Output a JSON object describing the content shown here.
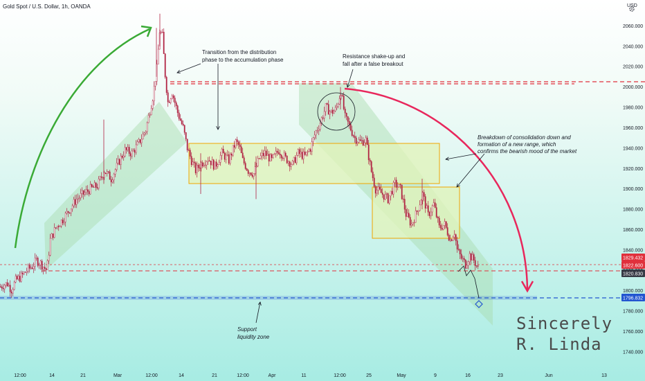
{
  "header": {
    "title": "Gold Spot / U.S. Dollar, 1h, OANDA",
    "currency": "USD"
  },
  "signature": {
    "line1": "Sincerely",
    "line2": "R. Linda"
  },
  "colors": {
    "bg_top": "#ffffff",
    "bg_bottom": "#a7ece3",
    "candle": "#b02040",
    "channel_fill": "#a9dcae",
    "range_border": "#f0a500",
    "range_fill": "#e2f3b8",
    "resistance": "#e0303c",
    "support": "#2255d0",
    "green_arrow": "#3aaa35",
    "red_arrow": "#e8275c"
  },
  "annotations": {
    "transition": [
      "Transition from the distribution",
      "phase to the accumulation phase"
    ],
    "resistance": [
      "Resistance shake-up and",
      "fall after a false breakout"
    ],
    "breakdown": [
      "Breakdown of consolidation down and",
      "formation of a new range, which",
      "confirms the bearish mood of the market"
    ],
    "support": [
      "Support",
      "liquidity zone"
    ]
  },
  "chart_data": {
    "type": "candlestick",
    "symbol": "Gold Spot / U.S. Dollar",
    "interval": "1h",
    "source": "OANDA",
    "ylim": [
      1725,
      2080
    ],
    "y_ticks": [
      1740,
      1760,
      1780,
      1800,
      1820,
      1840,
      1860,
      1880,
      1900,
      1920,
      1940,
      1960,
      1980,
      2000,
      2020,
      2040,
      2060
    ],
    "y_tick_labels": [
      "1740.000",
      "1760.000",
      "1780.000",
      "1800.000",
      "1820.000",
      "1840.000",
      "1860.000",
      "1880.000",
      "1900.000",
      "1920.000",
      "1940.000",
      "1960.000",
      "1980.000",
      "2000.000",
      "2020.000",
      "2040.000",
      "2060.000"
    ],
    "x_ticks": [
      "12:00",
      "14",
      "21",
      "Mar",
      "12:00",
      "14",
      "21",
      "12:00",
      "Apr",
      "11",
      "12:00",
      "25",
      "May",
      "9",
      "16",
      "23",
      "Jun",
      "13"
    ],
    "price_labels": [
      {
        "value": 1829.432,
        "label": "1829.432",
        "color": "#e0303c"
      },
      {
        "value": 1822.6,
        "label": "1822.600",
        "color": "#e0303c"
      },
      {
        "value": 1820.83,
        "label": "1820.830",
        "color": "#363a45"
      },
      {
        "value": 1796.832,
        "label": "1796.832",
        "color": "#2255d0"
      }
    ],
    "levels": [
      {
        "name": "resistance",
        "value": 2008
      },
      {
        "name": "support",
        "value": 1797
      },
      {
        "name": "local-low",
        "value": 1821
      }
    ],
    "ranges": [
      {
        "name": "accumulation-range",
        "start": "late Mar",
        "end": "mid May",
        "low": 1910,
        "high": 1950
      },
      {
        "name": "new-range",
        "start": "late Apr",
        "end": "mid May",
        "low": 1856,
        "high": 1906
      }
    ],
    "price_path": [
      [
        0,
        1804
      ],
      [
        5,
        1806
      ],
      [
        10,
        1807
      ],
      [
        16,
        1801
      ],
      [
        22,
        1810
      ],
      [
        30,
        1814
      ],
      [
        38,
        1820
      ],
      [
        46,
        1824
      ],
      [
        52,
        1830
      ],
      [
        58,
        1827
      ],
      [
        63,
        1823
      ],
      [
        67,
        1820
      ],
      [
        72,
        1850
      ],
      [
        80,
        1862
      ],
      [
        90,
        1870
      ],
      [
        100,
        1880
      ],
      [
        110,
        1890
      ],
      [
        120,
        1895
      ],
      [
        130,
        1900
      ],
      [
        140,
        1903
      ],
      [
        150,
        1918
      ],
      [
        160,
        1910
      ],
      [
        170,
        1925
      ],
      [
        180,
        1938
      ],
      [
        190,
        1935
      ],
      [
        200,
        1945
      ],
      [
        210,
        1958
      ],
      [
        220,
        1990
      ],
      [
        226,
        2018
      ],
      [
        230,
        2055
      ],
      [
        234,
        2050
      ],
      [
        238,
        2012
      ],
      [
        242,
        1985
      ],
      [
        248,
        1995
      ],
      [
        256,
        1975
      ],
      [
        264,
        1960
      ],
      [
        270,
        1940
      ],
      [
        276,
        1928
      ],
      [
        282,
        1918
      ],
      [
        290,
        1925
      ],
      [
        300,
        1930
      ],
      [
        310,
        1922
      ],
      [
        320,
        1935
      ],
      [
        330,
        1928
      ],
      [
        340,
        1946
      ],
      [
        345,
        1942
      ],
      [
        350,
        1928
      ],
      [
        358,
        1918
      ],
      [
        366,
        1915
      ],
      [
        374,
        1930
      ],
      [
        382,
        1935
      ],
      [
        392,
        1928
      ],
      [
        402,
        1938
      ],
      [
        412,
        1930
      ],
      [
        422,
        1924
      ],
      [
        430,
        1935
      ],
      [
        440,
        1932
      ],
      [
        448,
        1940
      ],
      [
        455,
        1955
      ],
      [
        462,
        1965
      ],
      [
        470,
        1980
      ],
      [
        478,
        1975
      ],
      [
        485,
        1978
      ],
      [
        492,
        1996
      ],
      [
        498,
        1970
      ],
      [
        504,
        1962
      ],
      [
        512,
        1950
      ],
      [
        520,
        1946
      ],
      [
        528,
        1948
      ],
      [
        535,
        1920
      ],
      [
        542,
        1900
      ],
      [
        550,
        1896
      ],
      [
        560,
        1890
      ],
      [
        570,
        1905
      ],
      [
        578,
        1900
      ],
      [
        586,
        1875
      ],
      [
        594,
        1865
      ],
      [
        602,
        1878
      ],
      [
        610,
        1895
      ],
      [
        618,
        1874
      ],
      [
        626,
        1885
      ],
      [
        634,
        1862
      ],
      [
        642,
        1865
      ],
      [
        650,
        1850
      ],
      [
        656,
        1858
      ],
      [
        660,
        1840
      ],
      [
        666,
        1832
      ],
      [
        672,
        1826
      ],
      [
        678,
        1835
      ],
      [
        684,
        1830
      ],
      [
        690,
        1822
      ]
    ]
  }
}
